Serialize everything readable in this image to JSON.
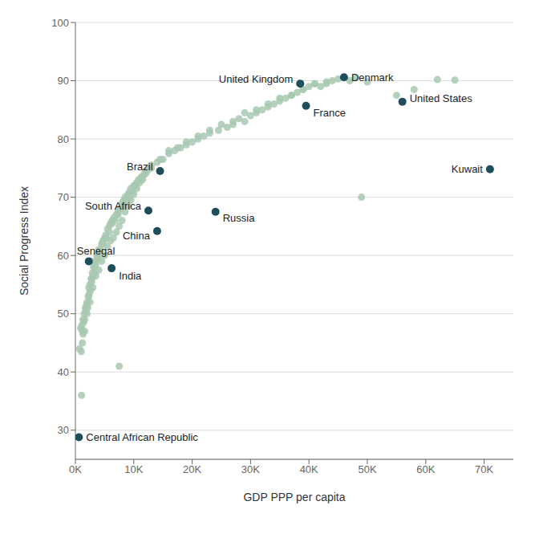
{
  "chart_data": {
    "type": "scatter",
    "xlabel": "GDP PPP per capita",
    "ylabel": "Social Progress Index",
    "xlim": [
      0,
      75000
    ],
    "ylim": [
      25,
      100
    ],
    "yticks": [
      30,
      40,
      50,
      60,
      70,
      80,
      90,
      100
    ],
    "xticks": [
      {
        "value": 0,
        "label": "0K"
      },
      {
        "value": 10000,
        "label": "10K"
      },
      {
        "value": 20000,
        "label": "20K"
      },
      {
        "value": 30000,
        "label": "30K"
      },
      {
        "value": 40000,
        "label": "40K"
      },
      {
        "value": 50000,
        "label": "50K"
      },
      {
        "value": 60000,
        "label": "60K"
      },
      {
        "value": 70000,
        "label": "70K"
      }
    ],
    "grid": true,
    "series": [
      {
        "color": "#a8c8b0",
        "x": [
          700,
          900,
          1000,
          1100,
          1200,
          1300,
          1400,
          1500,
          1600,
          1700,
          1800,
          1900,
          2000,
          2100,
          2200,
          2300,
          2400,
          2500,
          2600,
          2700,
          2800,
          2900,
          3000,
          3100,
          3200,
          3300,
          3500,
          3700,
          3900,
          4000,
          4200,
          4500,
          4700,
          5000,
          5200,
          5500,
          5800,
          6000,
          6300,
          6600,
          7000,
          7300,
          7500,
          8000,
          8300,
          8500,
          9000,
          9300,
          9500,
          10000,
          10500,
          11000,
          11500,
          12000,
          13000,
          14000,
          15000,
          16000,
          17000,
          18000,
          19000,
          20000,
          21000,
          22000,
          23000,
          24500,
          26000,
          27000,
          28000,
          29000,
          30000,
          31000,
          32000,
          33000,
          34000,
          35000,
          36000,
          37000,
          38000,
          39000,
          40000,
          41000,
          42000,
          43000,
          44000,
          45000,
          47000,
          48000,
          50000,
          55000,
          58000,
          62000,
          65000,
          1050,
          7500,
          1200,
          1600,
          2000,
          2500,
          3000,
          3500,
          4000,
          4500,
          5000,
          5500,
          6000,
          6500,
          7000,
          7500,
          8000,
          8500,
          9000,
          9500,
          10000,
          10500,
          11000,
          11500,
          12000,
          13000,
          14500,
          16000,
          17500,
          19000,
          21000,
          23000,
          25000,
          27000,
          29000,
          31000,
          33000,
          35000,
          37000,
          39000,
          41000,
          43000,
          1300,
          1800,
          2300,
          2800,
          3300,
          3800,
          4300,
          4800,
          5300,
          5800,
          6300,
          6800,
          7300,
          7800,
          8300,
          8800,
          9300,
          9800,
          10300,
          10800,
          11300,
          11800,
          12300,
          12800,
          49000
        ],
        "values": [
          44.0,
          47.5,
          43.5,
          48.0,
          47.0,
          46.5,
          48.5,
          50.0,
          49.0,
          51.0,
          50.5,
          51.5,
          52.0,
          51.0,
          53.0,
          54.5,
          53.5,
          55.0,
          54.0,
          56.0,
          55.5,
          57.0,
          56.5,
          58.0,
          57.0,
          59.0,
          58.5,
          60.0,
          59.5,
          61.0,
          60.5,
          62.0,
          62.5,
          63.0,
          63.5,
          64.5,
          65.0,
          65.5,
          66.0,
          66.5,
          67.0,
          67.5,
          68.0,
          69.0,
          69.5,
          70.0,
          70.5,
          71.0,
          71.5,
          72.0,
          72.5,
          73.0,
          73.5,
          74.0,
          75.0,
          76.0,
          76.5,
          77.5,
          78.0,
          78.5,
          79.0,
          79.5,
          80.0,
          80.5,
          81.0,
          81.5,
          82.0,
          82.5,
          83.5,
          83.0,
          84.0,
          84.5,
          85.0,
          85.5,
          86.0,
          86.5,
          87.0,
          87.5,
          88.0,
          88.5,
          89.0,
          89.5,
          89.0,
          89.5,
          90.0,
          90.3,
          90.0,
          90.5,
          89.8,
          87.5,
          88.5,
          90.2,
          90.1,
          36.0,
          41.0,
          45.0,
          47.0,
          50.0,
          52.0,
          54.5,
          56.5,
          57.5,
          59.0,
          60.0,
          61.5,
          62.5,
          63.0,
          64.0,
          65.0,
          66.0,
          67.5,
          68.5,
          69.5,
          70.5,
          71.5,
          72.5,
          73.0,
          74.5,
          75.5,
          76.5,
          78.0,
          78.5,
          79.5,
          80.5,
          81.5,
          82.5,
          83.0,
          84.5,
          85.0,
          86.0,
          87.0,
          87.5,
          88.5,
          89.5,
          89.8,
          49.0,
          50.5,
          53.0,
          56.0,
          58.0,
          59.5,
          61.0,
          62.0,
          63.0,
          64.0,
          65.5,
          66.0,
          67.0,
          68.0,
          68.5,
          69.5,
          70.0,
          71.0,
          72.0,
          73.0,
          73.5,
          74.0,
          74.5,
          75.0,
          70.0
        ]
      },
      {
        "color": "#1e4d5c",
        "labels": [
          "United Kingdom",
          "Denmark",
          "United States",
          "France",
          "Brazil",
          "South Africa",
          "China",
          "Russia",
          "Senegal",
          "India",
          "Kuwait",
          "Central African Republic"
        ],
        "x": [
          38500,
          46000,
          56000,
          39500,
          14500,
          12500,
          14000,
          24000,
          2300,
          6200,
          71000,
          600
        ],
        "values": [
          89.5,
          90.6,
          86.4,
          85.7,
          74.5,
          67.7,
          64.2,
          67.5,
          59.0,
          57.8,
          74.8,
          28.8
        ]
      }
    ]
  }
}
